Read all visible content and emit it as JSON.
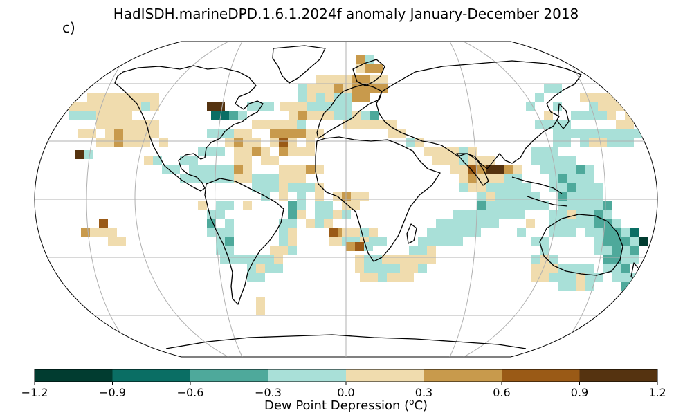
{
  "title": "HadISDH.marineDPD.1.6.1.2024f anomaly January-December 2018",
  "panel_label": "c)",
  "colorbar": {
    "label_main": "Dew Point Depression (",
    "label_sup": "o",
    "label_end": "C)",
    "ticks": [
      "−1.2",
      "−0.9",
      "−0.6",
      "−0.3",
      "0.0",
      "0.3",
      "0.6",
      "0.9",
      "1.2"
    ],
    "colors": [
      "#013c30",
      "#0a6e64",
      "#4ea99b",
      "#a9e0d8",
      "#f0dcae",
      "#c89a4c",
      "#9a5a16",
      "#553310"
    ]
  },
  "map": {
    "projection": "Robinson",
    "graticule": true,
    "land_outline_color": "#000000",
    "grid_color": "#b0b0b0"
  }
}
